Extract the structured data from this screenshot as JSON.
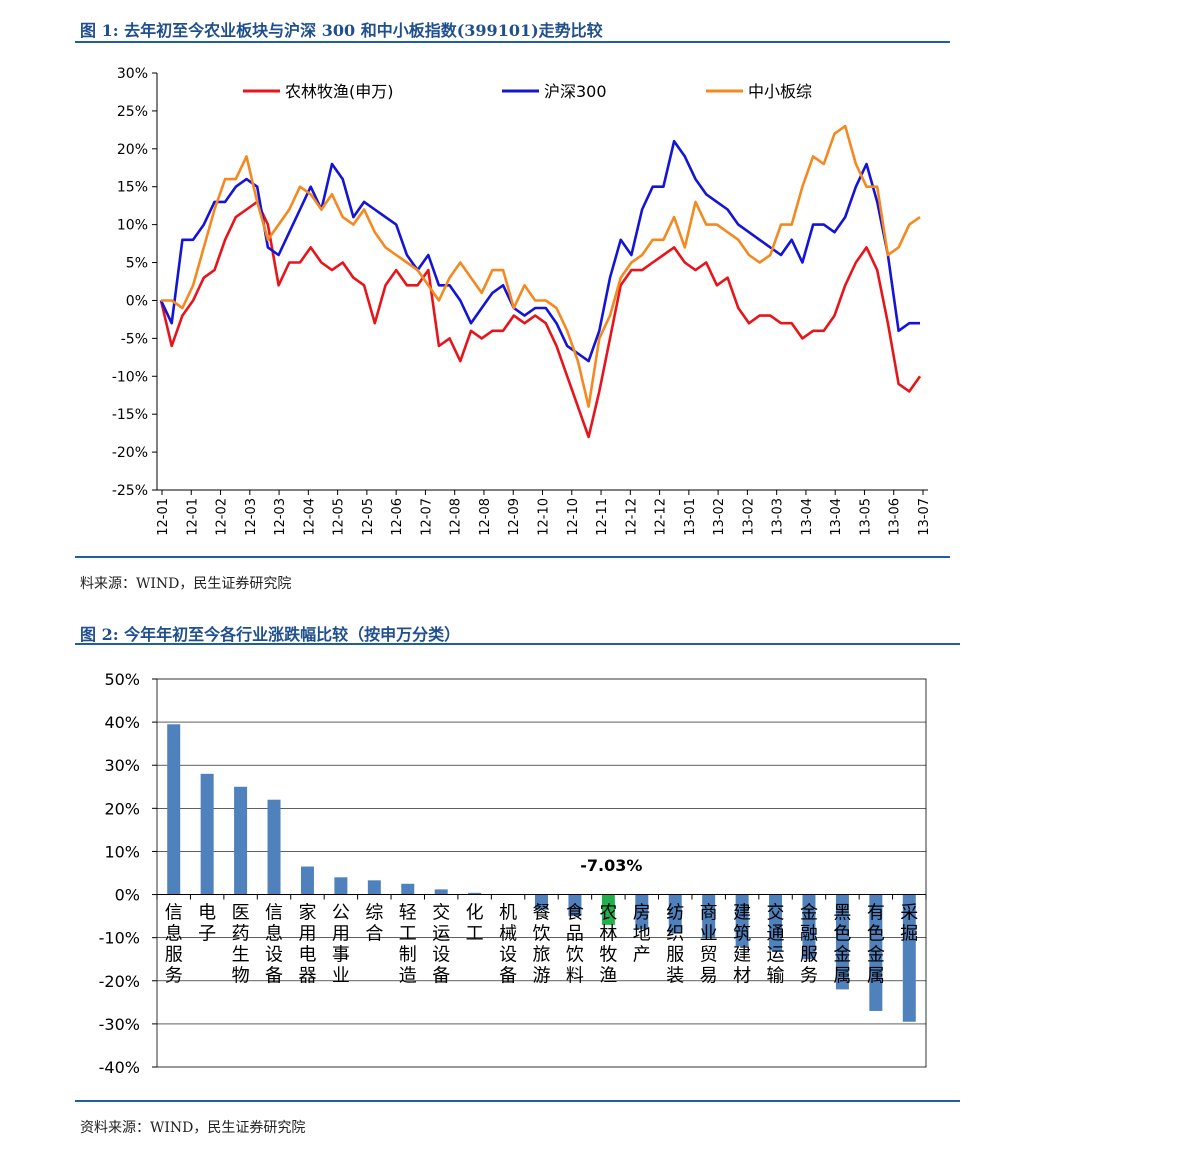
{
  "figure1": {
    "title": "图 1:  去年初至今农业板块与沪深 300 和中小板指数(399101)走势比较",
    "source": "料来源：WIND，民生证券研究院"
  },
  "figure2": {
    "title": "图 2:  今年年初至今各行业涨跌幅比较（按申万分类）",
    "source": "资料来源：WIND，民生证券研究院"
  },
  "colors": {
    "red": "#e8141a",
    "blue": "#1414d8",
    "orange": "#f5891f",
    "bar": "#4f81bd",
    "bar_highlight": "#21b14c",
    "rule": "#1f5fa0"
  },
  "chart_data": [
    {
      "type": "line",
      "ylim": [
        -25,
        30
      ],
      "y_ticks": [
        30,
        25,
        20,
        15,
        10,
        5,
        0,
        -5,
        -10,
        -15,
        -20,
        -25
      ],
      "y_tick_labels": [
        "30%",
        "25%",
        "20%",
        "15%",
        "10%",
        "5%",
        "0%",
        "-5%",
        "-10%",
        "-15%",
        "-20%",
        "-25%"
      ],
      "x_tick_labels": [
        "12-01",
        "12-01",
        "12-02",
        "12-03",
        "12-03",
        "12-04",
        "12-05",
        "12-05",
        "12-06",
        "12-07",
        "12-08",
        "12-08",
        "12-09",
        "12-10",
        "12-10",
        "12-11",
        "12-12",
        "12-12",
        "13-01",
        "13-02",
        "13-02",
        "13-03",
        "13-04",
        "13-04",
        "13-05",
        "13-06",
        "13-07"
      ],
      "legend_position": "top",
      "series": [
        {
          "name": "农林牧渔(申万)",
          "color": "#e8141a",
          "values": [
            0,
            -6,
            -2,
            0,
            3,
            4,
            8,
            11,
            12,
            13,
            10,
            2,
            5,
            5,
            7,
            5,
            4,
            5,
            3,
            2,
            -3,
            2,
            4,
            2,
            2,
            4,
            -6,
            -5,
            -8,
            -4,
            -5,
            -4,
            -4,
            -2,
            -3,
            -2,
            -3,
            -6,
            -10,
            -14,
            -18,
            -12,
            -5,
            2,
            4,
            4,
            5,
            6,
            7,
            5,
            4,
            5,
            2,
            3,
            -1,
            -3,
            -2,
            -2,
            -3,
            -3,
            -5,
            -4,
            -4,
            -2,
            2,
            5,
            7,
            4,
            -3,
            -11,
            -12,
            -10
          ]
        },
        {
          "name": "沪深300",
          "color": "#1414d8",
          "values": [
            0,
            -3,
            8,
            8,
            10,
            13,
            13,
            15,
            16,
            15,
            7,
            6,
            9,
            12,
            15,
            12,
            18,
            16,
            11,
            13,
            12,
            11,
            10,
            6,
            4,
            6,
            2,
            2,
            0,
            -3,
            -1,
            1,
            2,
            -1,
            -2,
            -1,
            -1,
            -3,
            -6,
            -7,
            -8,
            -4,
            3,
            8,
            6,
            12,
            15,
            15,
            21,
            19,
            16,
            14,
            13,
            12,
            10,
            9,
            8,
            7,
            6,
            8,
            5,
            10,
            10,
            9,
            11,
            15,
            18,
            13,
            6,
            -4,
            -3,
            -3
          ]
        },
        {
          "name": "中小板综",
          "color": "#f5891f",
          "values": [
            0,
            0,
            -1,
            2,
            7,
            12,
            16,
            16,
            19,
            13,
            8,
            10,
            12,
            15,
            14,
            12,
            14,
            11,
            10,
            12,
            9,
            7,
            6,
            5,
            4,
            2,
            0,
            3,
            5,
            3,
            1,
            4,
            4,
            -1,
            2,
            0,
            0,
            -1,
            -4,
            -8,
            -14,
            -5,
            -2,
            3,
            5,
            6,
            8,
            8,
            11,
            7,
            13,
            10,
            10,
            9,
            8,
            6,
            5,
            6,
            10,
            10,
            15,
            19,
            18,
            22,
            23,
            18,
            15,
            15,
            6,
            7,
            10,
            11
          ]
        }
      ]
    },
    {
      "type": "bar",
      "ylim": [
        -40,
        50
      ],
      "y_ticks": [
        50,
        40,
        30,
        20,
        10,
        0,
        -10,
        -20,
        -30,
        -40
      ],
      "y_tick_labels": [
        "50%",
        "40%",
        "30%",
        "20%",
        "10%",
        "0%",
        "-10%",
        "-20%",
        "-30%",
        "-40%"
      ],
      "categories": [
        "信息服务",
        "电子",
        "医药生物",
        "信息设备",
        "家用电器",
        "公用事业",
        "综合",
        "轻工制造",
        "交运设备",
        "化工",
        "机械设备",
        "餐饮旅游",
        "食品饮料",
        "农林牧渔",
        "房地产",
        "纺织服装",
        "商业贸易",
        "建筑建材",
        "交通运输",
        "金融服务",
        "黑色金属",
        "有色金属",
        "采掘"
      ],
      "values": [
        39.5,
        28,
        25,
        22,
        6.5,
        4,
        3.3,
        2.5,
        1.2,
        0.4,
        0.1,
        -3.5,
        -5,
        -7.03,
        -8,
        -9,
        -10,
        -12,
        -13,
        -15,
        -22,
        -27,
        -29.5
      ],
      "highlight_index": 13,
      "annotation": "-7.03%"
    }
  ]
}
